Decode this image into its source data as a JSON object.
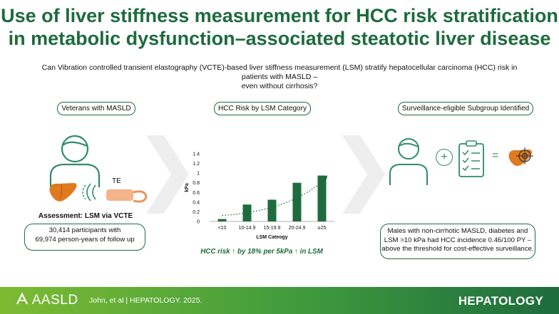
{
  "title_line1": "Use of liver stiffness measurement for HCC risk stratification",
  "title_line2": "in metabolic dysfunction–associated steatotic liver disease",
  "question_line1": "Can Vibration controlled transient elastography (VCTE)-based liver stiffness measurement (LSM) stratify hepatocellular carcinoma (HCC) risk in patients with MASLD –",
  "question_line2": "even without cirrhosis?",
  "panels": {
    "left": {
      "heading": "Veterans with MASLD",
      "te_label": "TE",
      "assessment": "Assessment: LSM via VCTE",
      "participants_line1": "30,414 participants with",
      "participants_line2": "69,974 person-years of follow up"
    },
    "middle": {
      "heading": "HCC Risk by LSM Category",
      "finding": "HCC risk ↑ by 18% per 5kPa ↑ in LSM"
    },
    "right": {
      "heading": "Surveillance-eligible Subgroup Identified",
      "plus": "+",
      "equals": "=",
      "finding_line1": "Males with non-cirrhotic MASLD, diabetes and",
      "finding_line2": "LSM >10 kPa had HCC incidence 0.46/100 PY –",
      "finding_line3": "above the threshold for cost-effective surveillance."
    }
  },
  "chart_data": {
    "type": "bar",
    "categories": [
      "<10",
      "10-14.9",
      "15-19.9",
      "20-24.9",
      "≥25"
    ],
    "values": [
      0.05,
      0.35,
      0.45,
      0.8,
      0.95
    ],
    "xlabel": "LSM Cateogy",
    "ylabel": "kPa",
    "ylim": [
      0,
      1.4
    ],
    "yticks": [
      "0",
      "0.2",
      "0.4",
      "0.6",
      "0.8",
      "1",
      "1.2",
      "1.4"
    ],
    "trend": "dotted exponential arrow",
    "bar_color": "#1e6b3e"
  },
  "footer": {
    "logo_text": "AASLD",
    "citation": "John, et al  |  HEPATOLOGY. 2025.",
    "journal": "HEPATOLOGY"
  },
  "colors": {
    "green_dark": "#1e6b3e",
    "green_light": "#7dbb33",
    "icon_teal": "#2e8b6e",
    "liver_orange": "#e07a1f"
  }
}
